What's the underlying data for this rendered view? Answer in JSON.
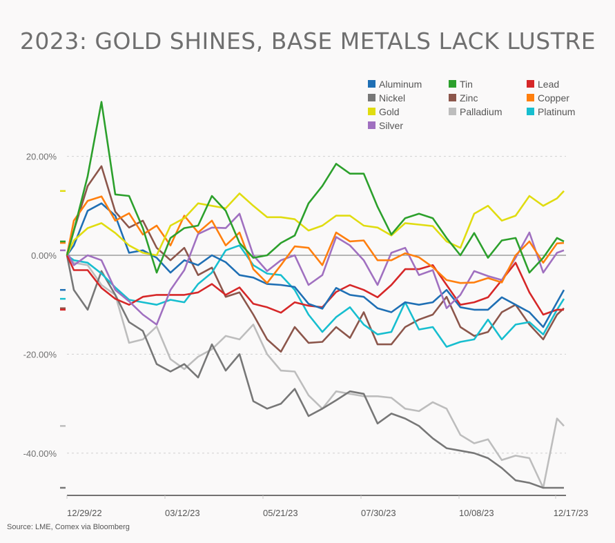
{
  "chart_data": {
    "type": "line",
    "title": "2023: GOLD SHINES, BASE METALS LACK LUSTRE",
    "source": "Source: LME, Comex via Bloomberg",
    "xlabel": "",
    "ylabel": "",
    "x_unit": "days since 12/29/22",
    "x": [
      0,
      5,
      15,
      25,
      35,
      45,
      55,
      65,
      75,
      85,
      95,
      105,
      115,
      125,
      135,
      145,
      155,
      165,
      175,
      185,
      195,
      205,
      215,
      225,
      235,
      245,
      255,
      265,
      275,
      285,
      295,
      305,
      315,
      325,
      335,
      345,
      355,
      360
    ],
    "xlim": [
      0,
      362
    ],
    "ylim": [
      -48.5,
      32
    ],
    "x_ticks": [
      {
        "day": 0,
        "label": "12/29/22"
      },
      {
        "day": 71,
        "label": "03/12/23"
      },
      {
        "day": 142,
        "label": "05/21/23"
      },
      {
        "day": 213,
        "label": "07/30/23"
      },
      {
        "day": 284,
        "label": "10/08/23"
      },
      {
        "day": 354,
        "label": "12/17/23"
      }
    ],
    "y_ticks": [
      {
        "value": 20,
        "label": "20.00%"
      },
      {
        "value": 0,
        "label": "0.00%"
      },
      {
        "value": -20,
        "label": "-20.00%"
      },
      {
        "value": -40,
        "label": "-40.00%"
      }
    ],
    "grid": true,
    "legend_position": "top-right",
    "series": [
      {
        "name": "Aluminum",
        "color": "#1f6fb4",
        "values": [
          0,
          2,
          9,
          10.5,
          8,
          0.5,
          1,
          -0.5,
          -3.5,
          -1,
          -2,
          0,
          -1.4,
          -4,
          -4.5,
          -5.8,
          -6,
          -6.4,
          -9.8,
          -10.8,
          -6.6,
          -8,
          -8.4,
          -10.7,
          -11.5,
          -9.5,
          -10,
          -9.5,
          -7,
          -10.5,
          -11,
          -11,
          -8.5,
          -10,
          -11.5,
          -14.5,
          -9.5,
          -7
        ]
      },
      {
        "name": "Nickel",
        "color": "#777777",
        "values": [
          0,
          -7,
          -11,
          -3.2,
          -8,
          -13.5,
          -15.3,
          -22,
          -23.5,
          -22,
          -24.7,
          -18,
          -23.3,
          -20,
          -29.5,
          -31,
          -30,
          -27,
          -32.5,
          -31,
          -29.3,
          -27.5,
          -28,
          -34,
          -32,
          -33,
          -34.5,
          -37,
          -39,
          -39.5,
          -40,
          -41,
          -43,
          -45.5,
          -46,
          -47,
          -47,
          -47
        ]
      },
      {
        "name": "Gold",
        "color": "#e0dc10",
        "values": [
          0,
          3,
          5.5,
          6.5,
          4.5,
          2,
          0.5,
          0,
          6,
          7.5,
          10.5,
          10,
          9.5,
          12.5,
          10,
          7.7,
          7.7,
          7.3,
          5,
          6,
          8,
          8,
          6,
          5.6,
          4,
          6.5,
          6.2,
          5.9,
          2.8,
          1.5,
          8.4,
          10,
          7,
          8,
          12,
          10,
          11.5,
          13
        ]
      },
      {
        "name": "Silver",
        "color": "#a070c0",
        "values": [
          0.7,
          -2,
          0,
          -1,
          -7,
          -9.3,
          -12,
          -14,
          -7,
          -3,
          4.3,
          5.6,
          5.5,
          8.4,
          0,
          -3.2,
          -1,
          0,
          -6,
          -4,
          3.7,
          2,
          -1,
          -6,
          0.5,
          1.5,
          -4,
          -3,
          -10.7,
          -8,
          -3.2,
          -4.2,
          -5,
          -0.5,
          4.6,
          -3.5,
          0.5,
          1
        ]
      },
      {
        "name": "Tin",
        "color": "#2ca02c",
        "values": [
          0,
          5,
          16,
          31,
          12.3,
          12,
          5.5,
          -3.5,
          3.5,
          5.5,
          6,
          12,
          9,
          2.5,
          -0.5,
          0,
          2.5,
          4,
          10.5,
          14,
          18.5,
          16.5,
          16.5,
          9.8,
          4.2,
          7.5,
          8.4,
          7.5,
          3.5,
          0,
          4.5,
          -0.5,
          3,
          3.5,
          -3.5,
          -0.5,
          3.5,
          2.8
        ]
      },
      {
        "name": "Zinc",
        "color": "#8c564b",
        "values": [
          0,
          5,
          14,
          18,
          8.8,
          5.6,
          7,
          1.5,
          -1,
          1.5,
          -4,
          -2.5,
          -8.4,
          -7.5,
          -12,
          -17,
          -19.5,
          -14.5,
          -17.7,
          -17.5,
          -14.5,
          -16.7,
          -11.5,
          -18,
          -18,
          -14.5,
          -13,
          -12,
          -8.4,
          -14.5,
          -16.3,
          -15.5,
          -11.5,
          -10,
          -14,
          -17,
          -12,
          -10.7
        ]
      },
      {
        "name": "Palladium",
        "color": "#bdbdbd",
        "values": [
          0,
          -1.5,
          -2,
          -6,
          -8,
          -17.7,
          -17,
          -14.4,
          -21,
          -23,
          -20.5,
          -19,
          -16.3,
          -17,
          -14,
          -20,
          -23.3,
          -23.5,
          -28.3,
          -31,
          -27.5,
          -28,
          -28.5,
          -28.5,
          -28.8,
          -31,
          -31.5,
          -29.7,
          -31,
          -36.3,
          -38,
          -37.2,
          -41.4,
          -40.5,
          -41,
          -47,
          -33,
          -34.5
        ]
      },
      {
        "name": "Lead",
        "color": "#d62728",
        "values": [
          0,
          -3,
          -3,
          -6.6,
          -8.8,
          -10,
          -8.4,
          -8,
          -8,
          -8,
          -7.5,
          -5.8,
          -8,
          -6.5,
          -9.8,
          -10.5,
          -11.6,
          -9.5,
          -10.2,
          -10.5,
          -7.4,
          -6,
          -7,
          -8.5,
          -6,
          -2.8,
          -2.8,
          -2,
          -6,
          -10,
          -9.5,
          -8.5,
          -5,
          -1.5,
          -7.5,
          -12,
          -11,
          -11
        ]
      },
      {
        "name": "Copper",
        "color": "#ff7f0e",
        "values": [
          0,
          7,
          11,
          11.9,
          7,
          8.5,
          4.2,
          6,
          2,
          8,
          4.6,
          7,
          2,
          4.6,
          -2.8,
          -5.6,
          -2,
          1.8,
          1.5,
          -2,
          4.6,
          2.8,
          3,
          -1,
          -1,
          0.4,
          -0.4,
          -2.4,
          -5,
          -5.6,
          -5.5,
          -4.6,
          -5.5,
          0,
          2.8,
          -1.5,
          2.4,
          2.5
        ]
      },
      {
        "name": "Platinum",
        "color": "#17becf",
        "values": [
          0,
          -1,
          -1.5,
          -3.7,
          -6.5,
          -9,
          -9.5,
          -10,
          -9,
          -9.5,
          -5.8,
          -3.5,
          1,
          2,
          -2,
          -3.7,
          -4,
          -7,
          -12,
          -15.5,
          -12.5,
          -10.5,
          -14,
          -16,
          -15.5,
          -9.5,
          -15,
          -14.5,
          -18.5,
          -17.5,
          -17,
          -13,
          -17,
          -14,
          -13.5,
          -16,
          -11,
          -8.8
        ]
      }
    ],
    "legend_order": [
      "Aluminum",
      "Tin",
      "Lead",
      "Nickel",
      "Zinc",
      "Copper",
      "Gold",
      "Palladium",
      "Platinum",
      "Silver"
    ]
  }
}
